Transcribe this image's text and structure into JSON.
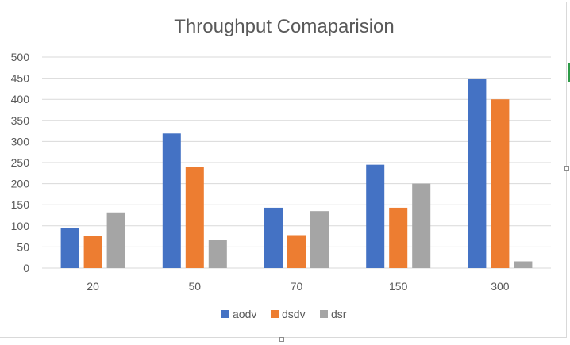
{
  "chart_data": {
    "type": "bar",
    "title": "Throughput Comaparision",
    "xlabel": "",
    "ylabel": "",
    "categories": [
      "20",
      "50",
      "70",
      "150",
      "300"
    ],
    "series": [
      {
        "name": "aodv",
        "color": "#4472C4",
        "values": [
          95,
          319,
          143,
          245,
          448
        ]
      },
      {
        "name": "dsdv",
        "color": "#ED7D31",
        "values": [
          76,
          240,
          78,
          143,
          400
        ]
      },
      {
        "name": "dsr",
        "color": "#A5A5A5",
        "values": [
          132,
          67,
          135,
          200,
          16
        ]
      }
    ],
    "ylim": [
      0,
      500
    ],
    "yticks": [
      "0",
      "50",
      "100",
      "150",
      "200",
      "250",
      "300",
      "350",
      "400",
      "450",
      "500"
    ],
    "grid": true,
    "legend_position": "bottom"
  },
  "colors": {
    "gridline": "#d9d9d9",
    "axis_text": "#595959",
    "title_text": "#595959"
  }
}
